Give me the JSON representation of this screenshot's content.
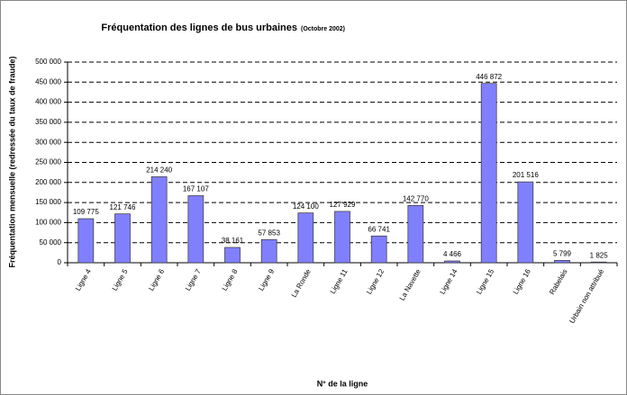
{
  "chart_data": {
    "type": "bar",
    "title": "Fréquentation des lignes de bus urbaines",
    "subtitle": "(Octobre 2002)",
    "ylabel": "Fréquentation mensuelle (redressée du taux de fraude)",
    "xlabel": "N° de la ligne",
    "categories": [
      "Ligne 4",
      "Ligne 5",
      "Ligne 6",
      "Ligne 7",
      "Ligne 8",
      "Ligne 9",
      "La Ronde",
      "Ligne 11",
      "Ligne 12",
      "La Navette",
      "Ligne 14",
      "Ligne 15",
      "Ligne 16",
      "Rabelais",
      "Urbain non attribué"
    ],
    "values": [
      109775,
      121746,
      214240,
      167107,
      38161,
      57853,
      124100,
      127929,
      66741,
      142770,
      4466,
      446872,
      201516,
      5799,
      1825
    ],
    "value_labels": [
      "109 775",
      "121 746",
      "214 240",
      "167 107",
      "38 161",
      "57 853",
      "124 100",
      "127 929",
      "66 741",
      "142 770",
      "4 466",
      "446 872",
      "201 516",
      "5 799",
      "1 825"
    ],
    "color": "#8080ff",
    "ylim": [
      0,
      500000
    ],
    "yticks": [
      0,
      {
        "value": 50000,
        "label": "50 000"
      },
      {
        "value": 100000,
        "label": "100 000"
      },
      {
        "value": 150000,
        "label": "150 000"
      },
      {
        "value": 200000,
        "label": "200 000"
      },
      {
        "value": 250000,
        "label": "250 000"
      },
      {
        "value": 300000,
        "label": "300 000"
      },
      {
        "value": 350000,
        "label": "350 000"
      },
      {
        "value": 400000,
        "label": "400 000"
      },
      {
        "value": 450000,
        "label": "450 000"
      },
      {
        "value": 500000,
        "label": "500 000"
      }
    ],
    "grid": true
  }
}
